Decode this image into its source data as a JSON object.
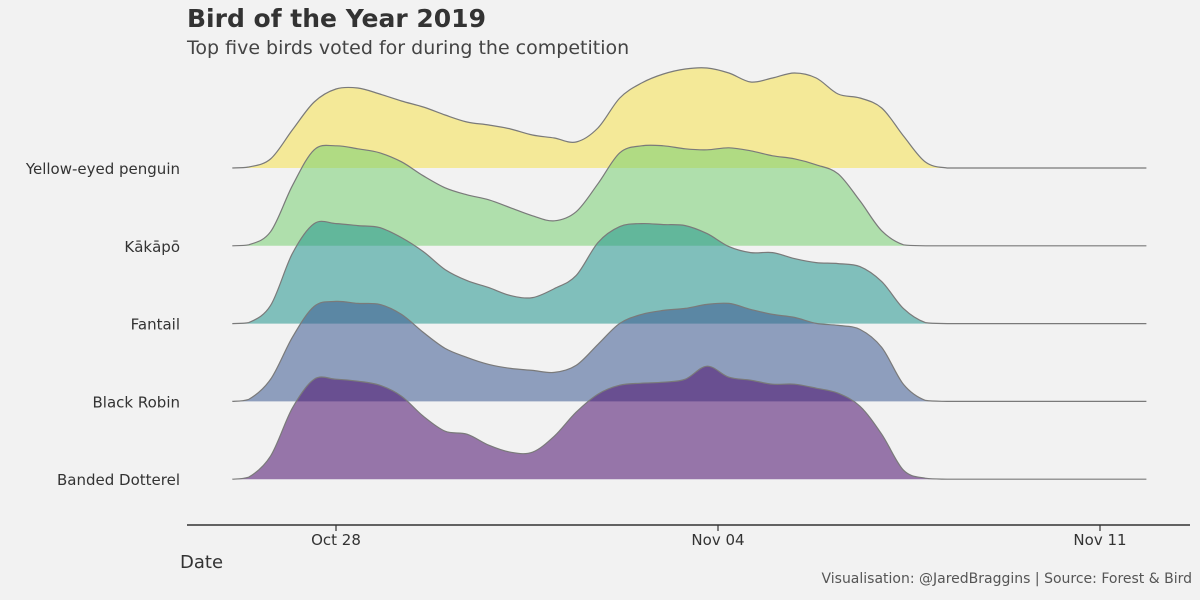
{
  "title": "Bird of the Year 2019",
  "subtitle": "Top five birds voted for during the competition",
  "caption": "Visualisation: @JaredBraggins | Source: Forest & Bird",
  "chart_data": {
    "type": "area",
    "subtype": "ridgeline",
    "xlabel": "Date",
    "ylabel": "",
    "x_ticks": [
      "Oct 28",
      "Nov 04",
      "Nov 11"
    ],
    "x_tick_days": [
      0,
      7,
      14
    ],
    "xlim_days": [
      -1.9,
      14.85
    ],
    "x": [
      -1.9,
      -1.6,
      -1.2,
      -0.8,
      -0.4,
      0,
      0.4,
      0.8,
      1.2,
      1.6,
      2,
      2.4,
      2.8,
      3.2,
      3.6,
      4,
      4.4,
      4.8,
      5.2,
      5.6,
      6,
      6.4,
      6.8,
      7.2,
      7.6,
      8,
      8.4,
      8.8,
      9.2,
      9.6,
      10,
      10.4,
      10.8,
      11.2,
      11.6,
      12,
      12.4,
      12.8,
      13.2,
      13.6,
      14,
      14.4,
      14.85
    ],
    "grid": false,
    "legend": "none",
    "series": [
      {
        "name": "Yellow-eyed penguin",
        "color": "#f5e14f",
        "values": [
          0,
          0.01,
          0.09,
          0.38,
          0.66,
          0.79,
          0.8,
          0.74,
          0.67,
          0.61,
          0.53,
          0.46,
          0.43,
          0.39,
          0.33,
          0.3,
          0.26,
          0.4,
          0.7,
          0.85,
          0.94,
          0.99,
          1.0,
          0.95,
          0.86,
          0.9,
          0.95,
          0.9,
          0.74,
          0.7,
          0.6,
          0.32,
          0.06,
          0,
          0,
          0,
          0,
          0,
          0,
          0,
          0,
          0,
          0
        ]
      },
      {
        "name": "Kākāpō",
        "color": "#79cf72",
        "values": [
          0,
          0.01,
          0.14,
          0.6,
          0.96,
          1.0,
          0.97,
          0.93,
          0.84,
          0.7,
          0.58,
          0.51,
          0.46,
          0.38,
          0.3,
          0.25,
          0.34,
          0.62,
          0.93,
          1.0,
          1.0,
          0.97,
          0.96,
          0.98,
          0.95,
          0.9,
          0.87,
          0.81,
          0.72,
          0.45,
          0.15,
          0.01,
          0,
          0,
          0,
          0,
          0,
          0,
          0,
          0,
          0,
          0,
          0
        ]
      },
      {
        "name": "Fantail",
        "color": "#22968e",
        "values": [
          0,
          0.01,
          0.18,
          0.7,
          1.0,
          1.0,
          0.98,
          0.96,
          0.86,
          0.72,
          0.54,
          0.43,
          0.36,
          0.28,
          0.26,
          0.35,
          0.48,
          0.81,
          0.97,
          1.0,
          0.99,
          0.98,
          0.9,
          0.77,
          0.71,
          0.71,
          0.65,
          0.61,
          0.6,
          0.57,
          0.42,
          0.15,
          0.01,
          0,
          0,
          0,
          0,
          0,
          0,
          0,
          0,
          0,
          0
        ]
      },
      {
        "name": "Black Robin",
        "color": "#3d5a92",
        "values": [
          0,
          0.02,
          0.22,
          0.64,
          0.95,
          1.0,
          0.98,
          0.97,
          0.87,
          0.69,
          0.53,
          0.44,
          0.37,
          0.33,
          0.31,
          0.29,
          0.36,
          0.57,
          0.78,
          0.87,
          0.91,
          0.93,
          0.97,
          0.98,
          0.92,
          0.87,
          0.84,
          0.78,
          0.76,
          0.72,
          0.54,
          0.17,
          0.01,
          0,
          0,
          0,
          0,
          0,
          0,
          0,
          0,
          0,
          0
        ]
      },
      {
        "name": "Banded Dotterel",
        "color": "#4a0e6d",
        "values": [
          0,
          0.02,
          0.23,
          0.71,
          1.0,
          1.0,
          0.98,
          0.94,
          0.83,
          0.63,
          0.48,
          0.45,
          0.34,
          0.27,
          0.27,
          0.43,
          0.67,
          0.85,
          0.94,
          0.96,
          0.97,
          1.0,
          1.13,
          1.02,
          0.99,
          0.95,
          0.95,
          0.91,
          0.86,
          0.73,
          0.45,
          0.09,
          0.01,
          0,
          0,
          0,
          0,
          0,
          0,
          0,
          0,
          0,
          0
        ]
      }
    ]
  }
}
